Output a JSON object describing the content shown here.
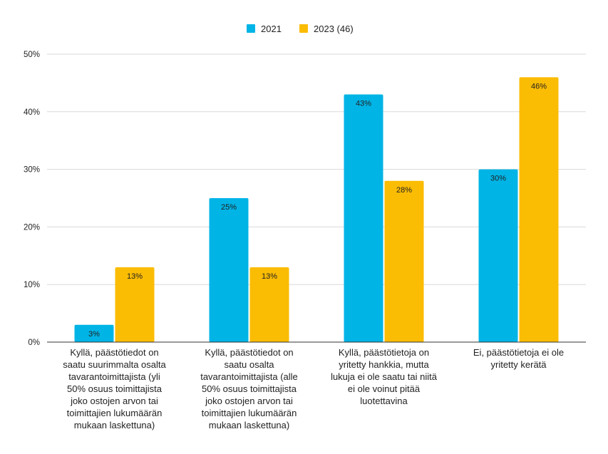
{
  "chart_data": {
    "type": "bar",
    "categories": [
      [
        "Kyllä, päästötiedot on",
        "saatu suurimmalta osalta",
        "tavarantoimittajista (yli",
        "50% osuus toimittajista",
        "joko ostojen arvon tai",
        "toimittajien lukumäärän",
        "mukaan laskettuna)"
      ],
      [
        "Kyllä, päästötiedot on",
        "saatu osalta",
        "tavarantoimittajista (alle",
        "50% osuus toimittajista",
        "joko ostojen arvon tai",
        "toimittajien lukumäärän",
        "mukaan laskettuna)"
      ],
      [
        "Kyllä, päästötietoja on",
        "yritetty hankkia, mutta",
        "lukuja ei ole saatu tai niitä",
        "ei ole voinut pitää",
        "luotettavina"
      ],
      [
        "Ei, päästötietoja ei ole",
        "yritetty kerätä"
      ]
    ],
    "series": [
      {
        "name": "2021",
        "color": "#00b4e6",
        "values": [
          3,
          25,
          43,
          30
        ],
        "labels": [
          "3%",
          "25%",
          "43%",
          "30%"
        ]
      },
      {
        "name": "2023 (46)",
        "color": "#fbbc04",
        "values": [
          13,
          13,
          28,
          46
        ],
        "labels": [
          "13%",
          "13%",
          "28%",
          "46%"
        ]
      }
    ],
    "ylim": [
      0,
      50
    ],
    "yticks": [
      0,
      10,
      20,
      30,
      40,
      50
    ],
    "ytick_labels": [
      "0%",
      "10%",
      "20%",
      "30%",
      "40%",
      "50%"
    ],
    "grid": true,
    "legend": "top-center"
  }
}
